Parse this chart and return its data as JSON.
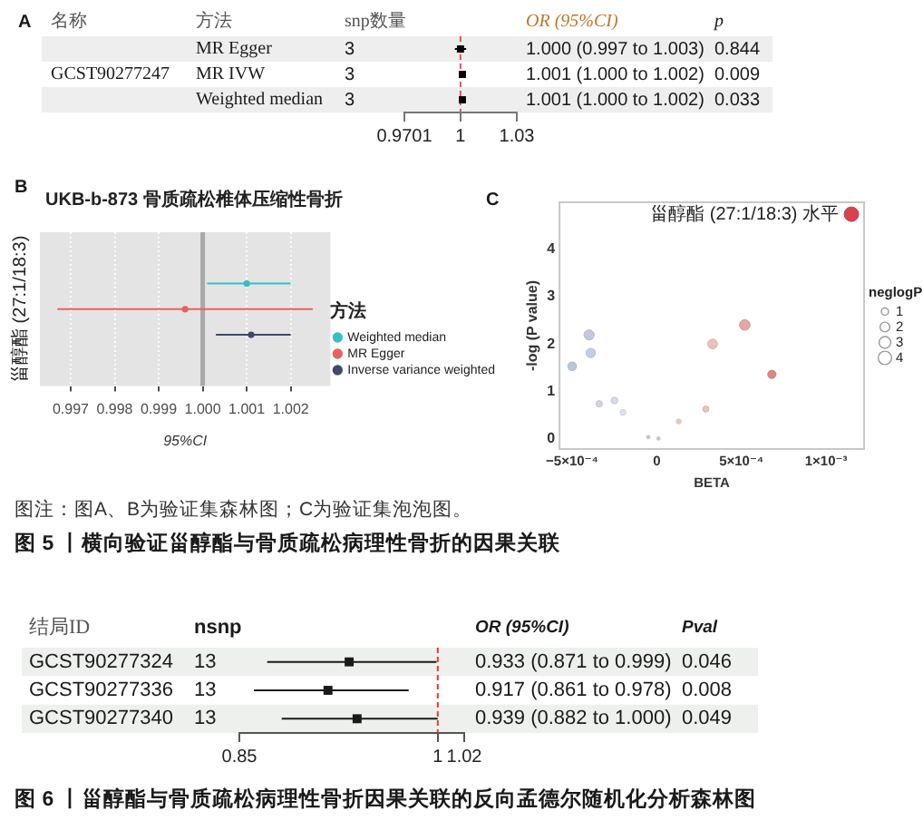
{
  "chart_data": [
    {
      "type": "scatter",
      "orientation": "horizontal",
      "ylabel": "方法",
      "categories": [
        "MR Egger",
        "MR IVW",
        "Weighted median"
      ],
      "values": [
        1.0,
        1.001,
        1.001
      ],
      "errors": [
        [
          0.997,
          1.003
        ],
        [
          1.0,
          1.002
        ],
        [
          1.0,
          1.002
        ]
      ],
      "color": "#000000",
      "marker": "square",
      "value_labels": [
        "1.000 (0.997 to 1.003)",
        "1.001 (1.000 to 1.002)",
        "1.001 (1.000 to 1.002)"
      ],
      "xlim": [
        0.9701,
        1.03
      ],
      "xticks": [
        0.9701,
        1,
        1.03
      ],
      "ref_lines": [
        {
          "axis": "x",
          "value": 1,
          "color": "#e8534f",
          "line_style": "dashed"
        }
      ],
      "annotations": [
        "A",
        "名称",
        "GCST90277247",
        "snp数量",
        "3",
        "3",
        "3",
        "OR (95%CI)",
        "p",
        "0.844",
        "0.009",
        "0.033"
      ]
    },
    {
      "type": "scatter",
      "orientation": "horizontal",
      "title": "UKB-b-873 骨质疏松椎体压缩性骨折",
      "ylabel": "甾醇酯 (27:1/18:3)",
      "xlabel": "95%CI",
      "categories": [
        null
      ],
      "series": [
        {
          "name": "Weighted median",
          "color": "#35bfc4",
          "values": [
            1.001
          ],
          "errors": [
            [
              1.0001,
              1.002
            ]
          ]
        },
        {
          "name": "MR Egger",
          "color": "#e6625c",
          "values": [
            0.9996
          ],
          "errors": [
            [
              0.9967,
              1.0025
            ]
          ]
        },
        {
          "name": "Inverse variance weighted",
          "color": "#3d4a69",
          "values": [
            1.0011
          ],
          "errors": [
            [
              1.0003,
              1.002
            ]
          ]
        }
      ],
      "xlim": [
        0.9963,
        1.0029
      ],
      "xticks": [
        0.997,
        0.998,
        0.999,
        {
          "value": 1,
          "label": "1.000"
        },
        1.001,
        1.002
      ],
      "ref_lines": [
        {
          "axis": "x",
          "value": 1,
          "color": "#a9a9a9",
          "line_style": "solid"
        }
      ],
      "grid": "x",
      "legend": "right",
      "legend_title": "方法",
      "marker": "circle",
      "annotations": [
        "B"
      ]
    },
    {
      "type": "bubble",
      "xlabel": "BETA",
      "ylabel": "-log (P value)",
      "x": [
        -0.0005,
        -0.0004,
        -0.00039,
        -0.00034,
        -0.00025,
        -0.0002,
        -5e-05,
        1e-05,
        0.00013,
        0.00029,
        0.00033,
        0.00052,
        0.00068,
        0.00115
      ],
      "values": [
        1.53,
        2.19,
        1.81,
        0.74,
        0.81,
        0.56,
        0.04,
        0.01,
        0.37,
        0.63,
        2.0,
        2.4,
        1.36,
        4.73
      ],
      "sizes": [
        1.53,
        2.19,
        1.81,
        0.74,
        0.81,
        0.56,
        0.04,
        0.01,
        0.37,
        0.63,
        2.0,
        2.4,
        1.36,
        4.73
      ],
      "colors": [
        "#b9c5dc",
        "#bfcae0",
        "#c2cde1",
        "#cfd6e5",
        "#d5dbe8",
        "#dde1eb",
        "#c4c4c6",
        "#c8c4c4",
        "#e8c4c1",
        "#efc1bd",
        "#eec0bb",
        "#e7a5a3",
        "#df8584",
        "#d8424f"
      ],
      "size_legend": [
        1,
        2,
        3,
        4
      ],
      "legend_title": "neglogP",
      "xlim": [
        -0.00058,
        0.00123
      ],
      "xticks": [
        {
          "value": -0.0005,
          "label": "−5×10⁻⁴"
        },
        0,
        {
          "value": 0.0005,
          "label": "5×10⁻⁴"
        },
        {
          "value": 0.001,
          "label": "1×10⁻³"
        }
      ],
      "ylim": [
        -0.23,
        5
      ],
      "yticks": [
        0,
        1,
        2,
        3,
        4
      ],
      "annotations": [
        "C",
        {
          "text": "甾醇酯 (27:1/18:3) 水平",
          "x": 0.00115,
          "y": 4.73
        },
        "图注：图A、B为验证集森林图；C为验证集泡泡图。",
        "图 5 丨横向验证甾醇酯与骨质疏松病理性骨折的因果关联"
      ]
    },
    {
      "type": "scatter",
      "orientation": "horizontal",
      "ylabel": "结局ID",
      "categories": [
        "GCST90277324",
        "GCST90277336",
        "GCST90277340"
      ],
      "values": [
        0.933,
        0.917,
        0.939
      ],
      "errors": [
        [
          0.871,
          0.999
        ],
        [
          0.861,
          0.978
        ],
        [
          0.882,
          1.0
        ]
      ],
      "color": "#1a1a1a",
      "marker": "square",
      "value_labels": [
        "0.933 (0.871 to 0.999)",
        "0.917 (0.861 to 0.978)",
        "0.939 (0.882 to 1.000)"
      ],
      "xlim": [
        0.85,
        1.02
      ],
      "xticks": [
        0.85,
        1,
        1.02
      ],
      "ref_lines": [
        {
          "axis": "x",
          "value": 1,
          "color": "#e83a3a",
          "line_style": "dashed"
        }
      ],
      "annotations": [
        "nsnp",
        "13",
        "13",
        "13",
        "OR (95%CI)",
        "Pval",
        "0.046",
        "0.008",
        "0.049",
        "图 6 丨甾醇酯与骨质疏松病理性骨折因果关联的反向孟德尔随机化分析森林图"
      ]
    }
  ]
}
